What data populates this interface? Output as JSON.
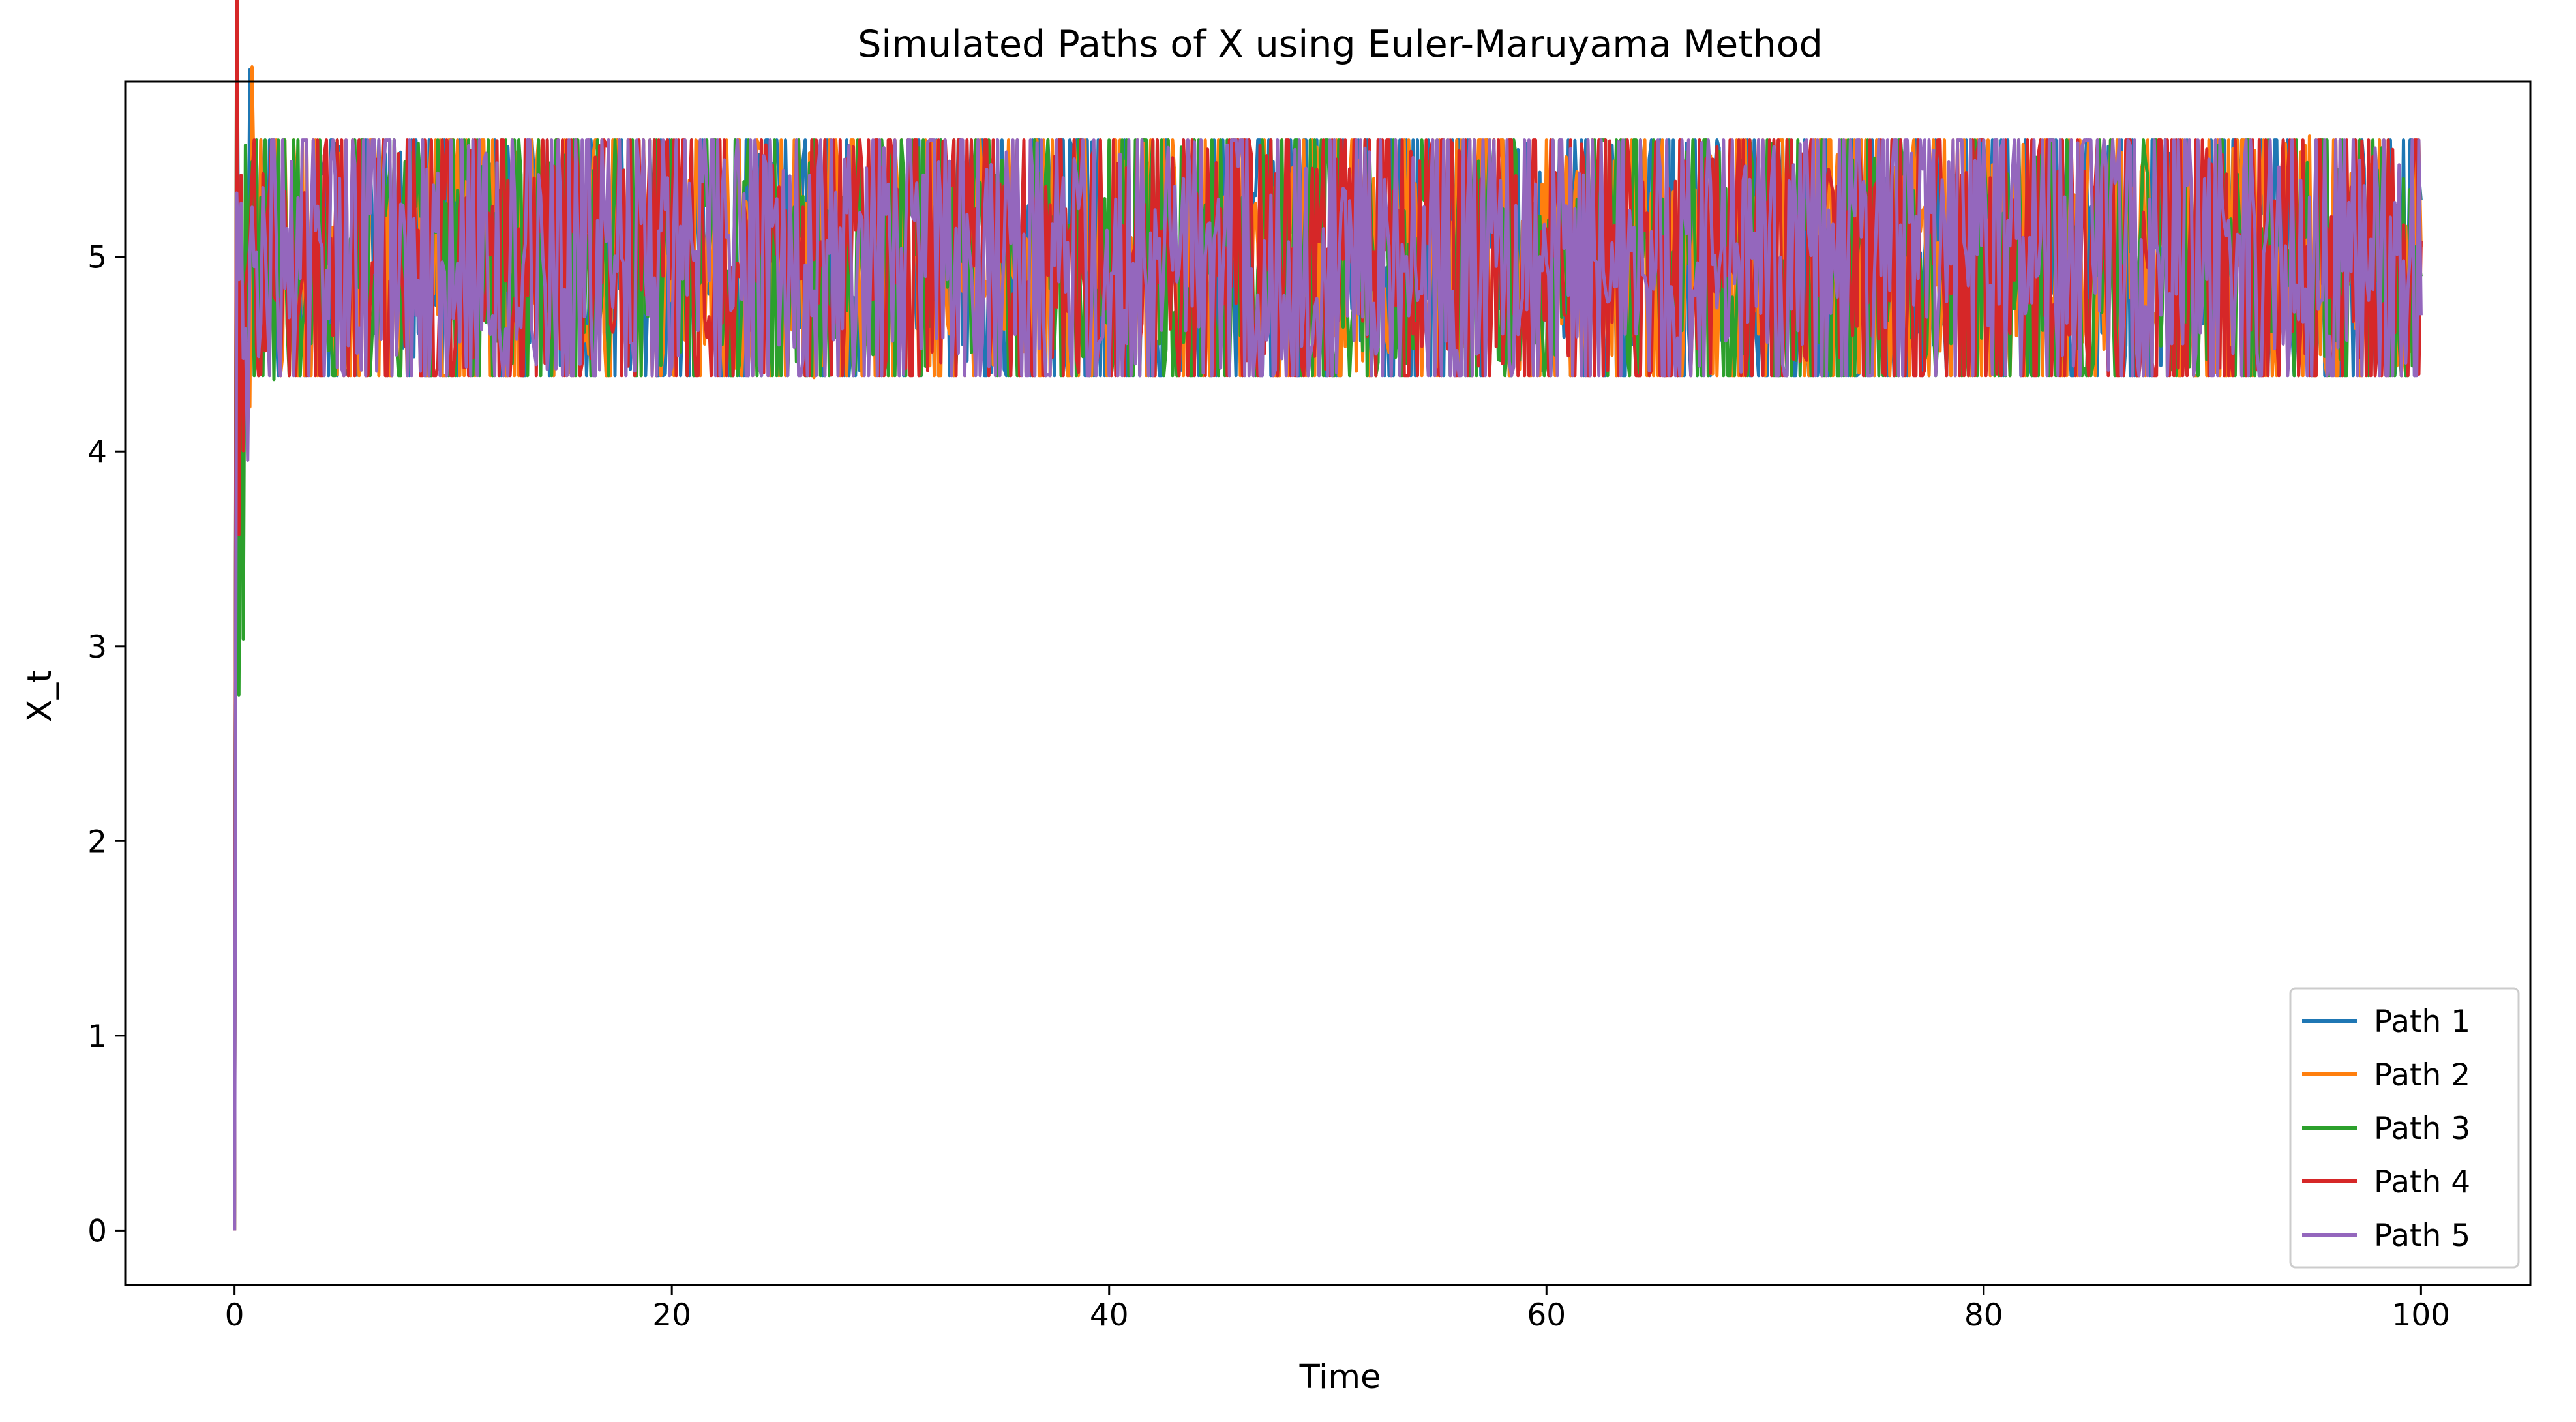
{
  "chart_data": {
    "type": "line",
    "title": "Simulated Paths of X using Euler-Maruyama Method",
    "xlabel": "Time",
    "ylabel": "X_t",
    "xlim": [
      -5,
      105
    ],
    "ylim": [
      -0.28,
      5.9
    ],
    "x_ticks": [
      0,
      20,
      40,
      60,
      80,
      100
    ],
    "y_ticks": [
      0,
      1,
      2,
      3,
      4,
      5
    ],
    "x_range": [
      0,
      100
    ],
    "initial_value": 0,
    "long_run_mean": 5,
    "fluctuation_band": [
      4.37,
      5.62
    ],
    "grid": false,
    "legend_position": "bottom-right",
    "series": [
      {
        "name": "Path 1",
        "color": "#1f77b4",
        "peak": {
          "x": 32.5,
          "y": 5.58
        },
        "secondary_peak": {
          "x": 54.8,
          "y": 5.58
        },
        "end_value": 5.29
      },
      {
        "name": "Path 2",
        "color": "#ff7f0e",
        "peak": {
          "x": 94.9,
          "y": 5.62
        },
        "trough": {
          "x": 26.5,
          "y": 4.38
        },
        "end_value": 5.05
      },
      {
        "name": "Path 3",
        "color": "#2ca02c",
        "trough": {
          "x": 1.8,
          "y": 4.37
        },
        "end_value": 4.9
      },
      {
        "name": "Path 4",
        "color": "#d62728",
        "peak": {
          "x": 16.7,
          "y": 5.57
        },
        "trough": {
          "x": 92.5,
          "y": 4.42
        },
        "end_value": 5.08
      },
      {
        "name": "Path 5",
        "color": "#9467bd",
        "peak": {
          "x": 29.7,
          "y": 5.56
        },
        "trough": {
          "x": 70.8,
          "y": 4.45
        },
        "end_value": 4.7
      }
    ]
  }
}
